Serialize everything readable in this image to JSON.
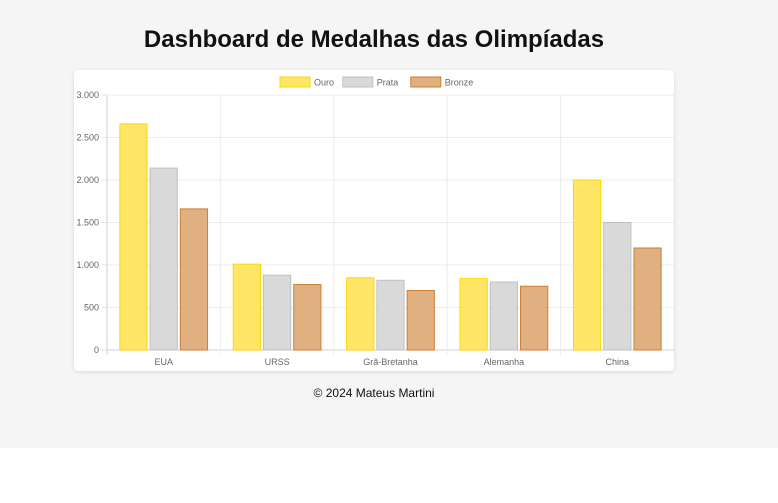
{
  "page": {
    "title": "Dashboard de Medalhas das Olimpíadas",
    "footer": "© 2024 Mateus Martini"
  },
  "chart_data": {
    "type": "bar",
    "title": "",
    "xlabel": "",
    "ylabel": "",
    "categories": [
      "EUA",
      "URSS",
      "Grã-Bretanha",
      "Alemanha",
      "China"
    ],
    "series": [
      {
        "name": "Ouro",
        "values": [
          2660,
          1010,
          850,
          840,
          2000
        ],
        "fill": "#ffe666",
        "stroke": "#ffd700"
      },
      {
        "name": "Prata",
        "values": [
          2140,
          880,
          820,
          800,
          1500
        ],
        "fill": "#d9d9d9",
        "stroke": "#c0c0c0"
      },
      {
        "name": "Bronze",
        "values": [
          1660,
          770,
          700,
          750,
          1200
        ],
        "fill": "#e0b080",
        "stroke": "#cd7f32"
      }
    ],
    "ylim": [
      0,
      3000
    ],
    "yticks": [
      0,
      500,
      1000,
      1500,
      2000,
      2500,
      3000
    ],
    "ytick_labels": [
      "0",
      "500",
      "1.000",
      "1.500",
      "2.000",
      "2.500",
      "3.000"
    ],
    "grid": true,
    "legend_position": "top-center"
  }
}
